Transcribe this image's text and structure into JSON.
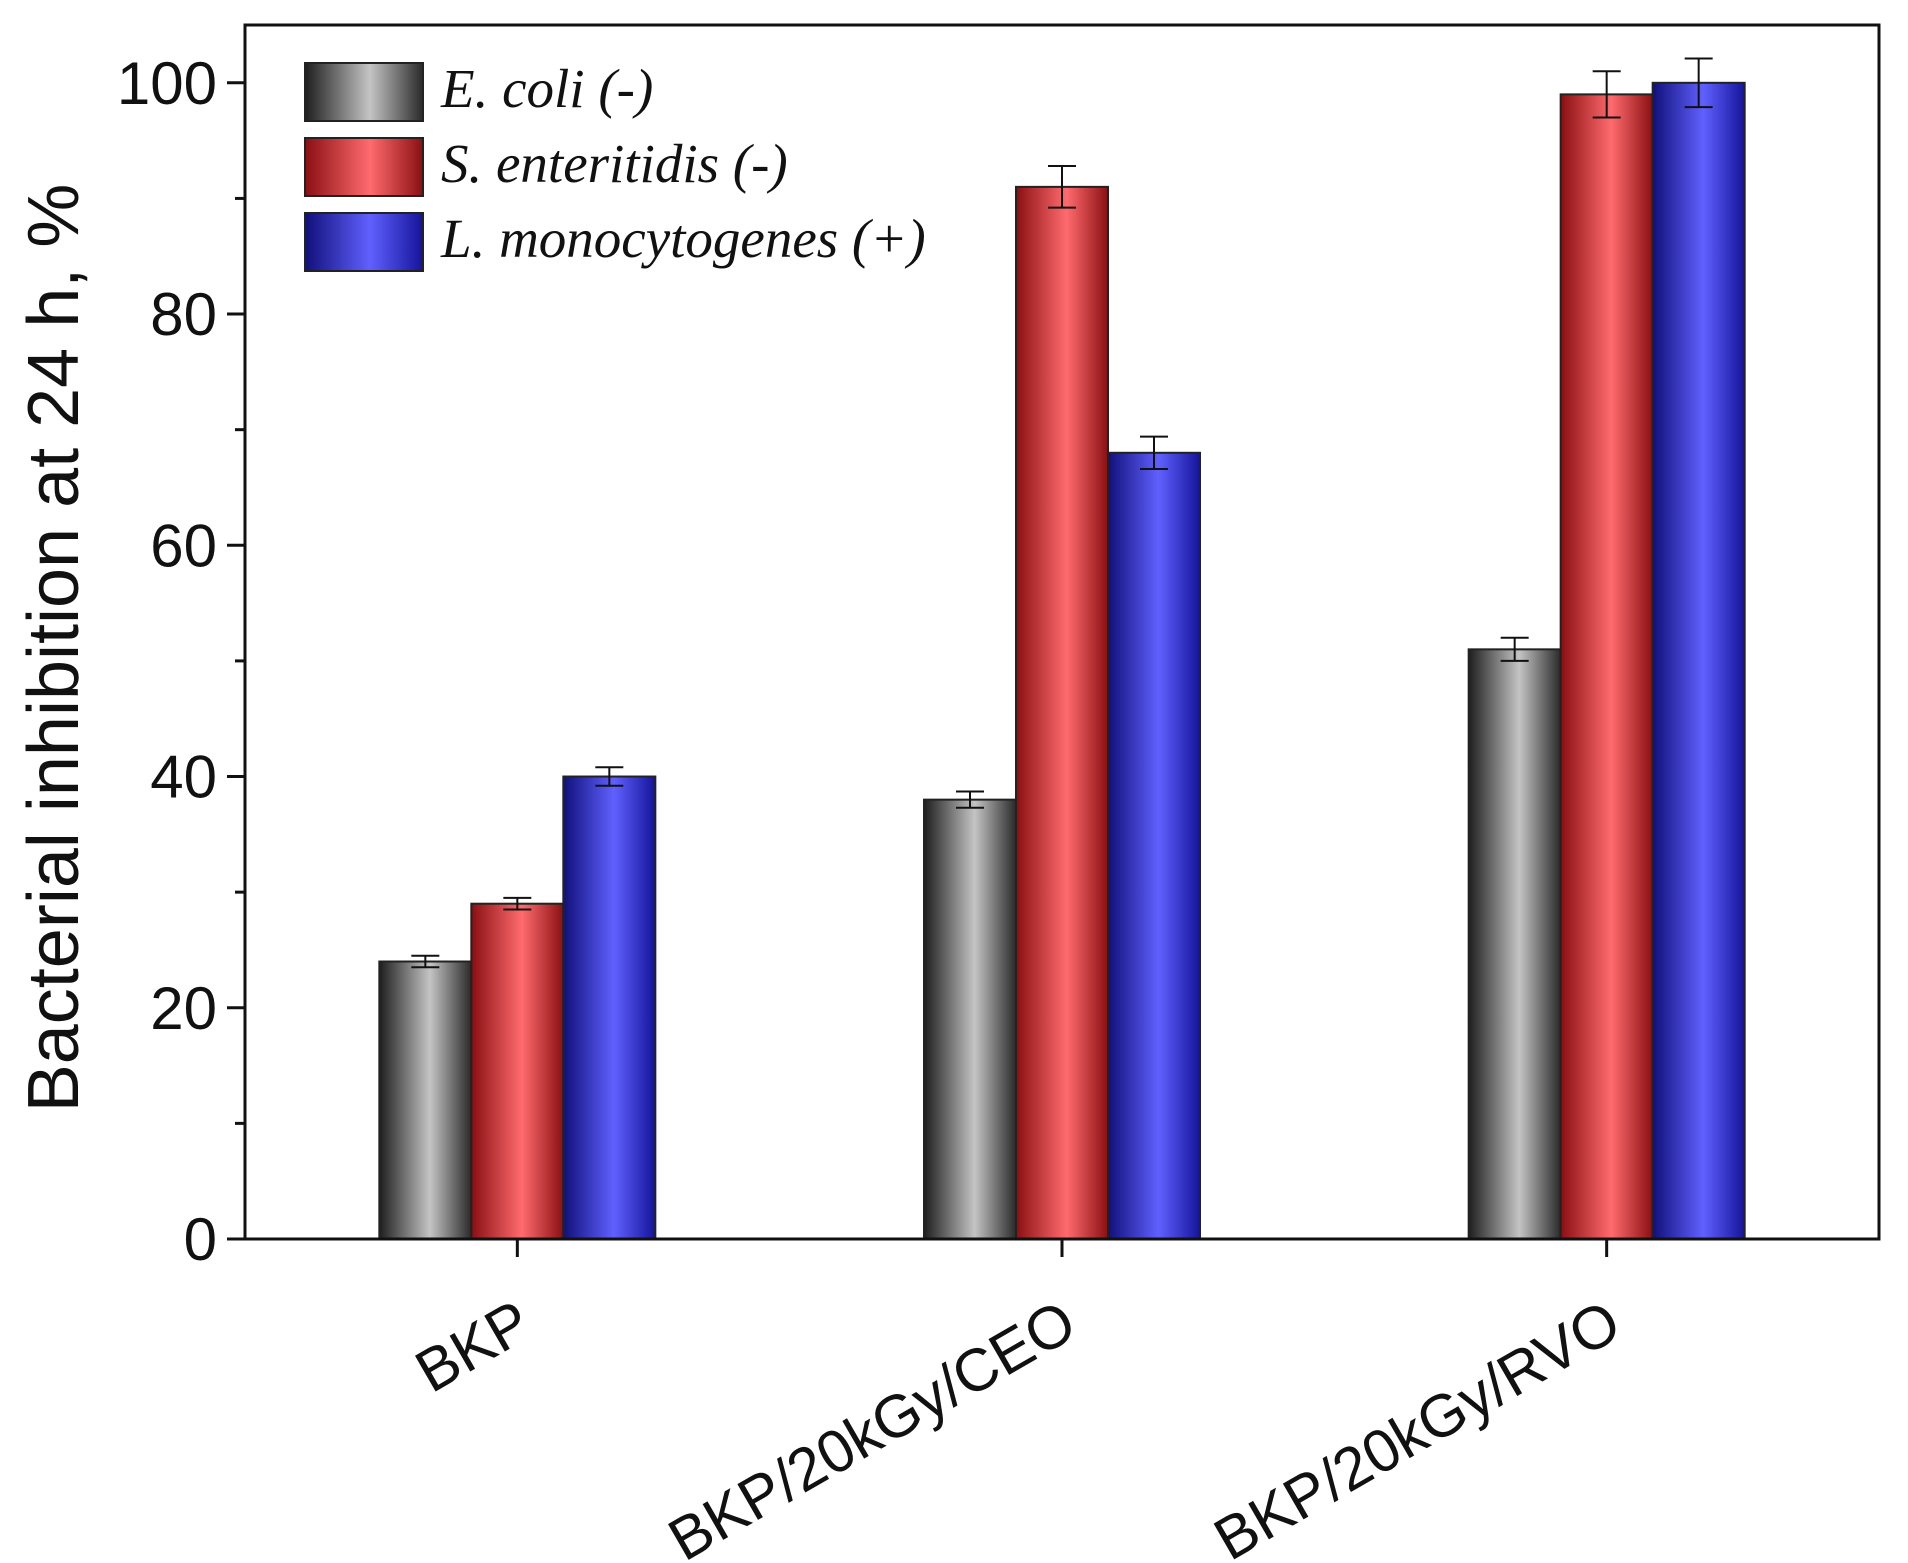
{
  "chart_data": {
    "type": "bar",
    "title": "",
    "xlabel": "",
    "ylabel": "Bacterial inhibition at 24 h, %",
    "ylim": [
      0,
      105
    ],
    "yticks": [
      0,
      20,
      40,
      60,
      80,
      100
    ],
    "yminor_step": 10,
    "grid": false,
    "legend_position": "top-left",
    "categories": [
      "BKP",
      "BKP/20kGy/CEO",
      "BKP/20kGy/RVO"
    ],
    "series": [
      {
        "name": "E. coli (-)",
        "values": [
          24,
          38,
          51
        ],
        "errors": [
          0.5,
          0.7,
          1.0
        ],
        "color": "#9a9a9a"
      },
      {
        "name": "S. enteritidis (-)",
        "values": [
          29,
          91,
          99
        ],
        "errors": [
          0.5,
          1.8,
          2.0
        ],
        "color": "#e8474c"
      },
      {
        "name": "L. monocytogenes (+)",
        "values": [
          40,
          68,
          100
        ],
        "errors": [
          0.8,
          1.4,
          2.1
        ],
        "color": "#4646f0"
      }
    ]
  }
}
